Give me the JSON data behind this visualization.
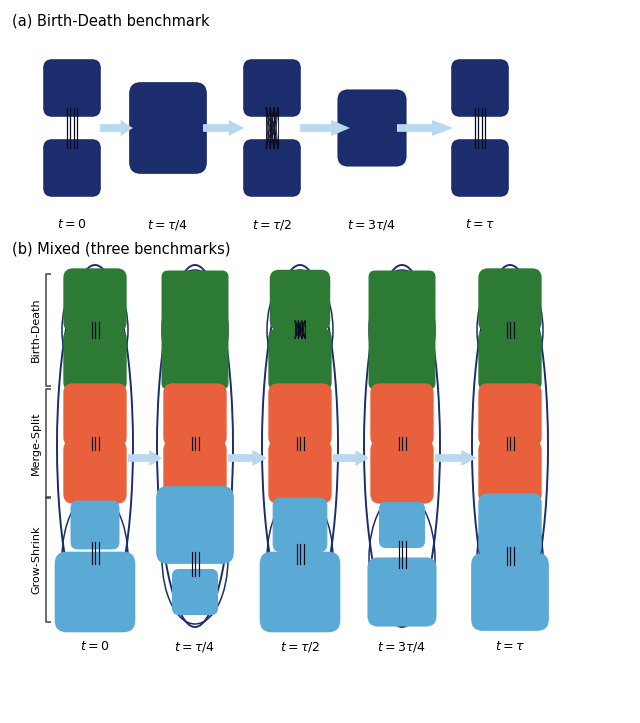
{
  "title_a": "(a) Birth-Death benchmark",
  "title_b": "(b) Mixed (three benchmarks)",
  "time_labels_a": [
    "$t = 0$",
    "$t = \\tau/4$",
    "$t = \\tau/2$",
    "$t = 3\\tau/4$",
    "$t = \\tau$"
  ],
  "time_labels_b": [
    "$t = 0$",
    "$t = \\tau/4$",
    "$t = \\tau/2$",
    "$t = 3\\tau/4$",
    "$t = \\tau$"
  ],
  "navy": "#1C2D6E",
  "green": "#2D7A35",
  "orange": "#E8613C",
  "blue": "#5BAAD5",
  "arrow_color": "#B8D8F0",
  "ellipse_color": "#1C2D6E",
  "edge_color": "#0A0A20",
  "brace_color": "#444444",
  "label_bd": "Birth-Death",
  "label_ms": "Merge-Split",
  "label_gs": "Grow-Shrink",
  "fig_width": 6.4,
  "fig_height": 7.23
}
